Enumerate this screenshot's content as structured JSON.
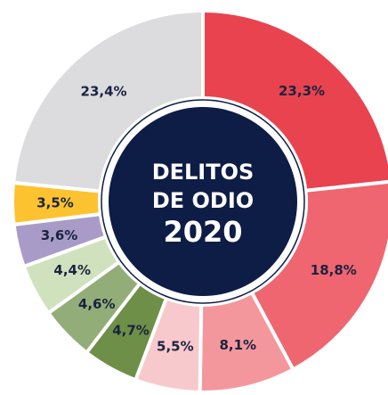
{
  "chart_data": {
    "type": "donut",
    "center_text": [
      "DELITOS",
      "DE ODIO",
      "2020"
    ],
    "categories": [
      null,
      null,
      null,
      null,
      null,
      null,
      null,
      null,
      null,
      null
    ],
    "values": [
      23.3,
      18.8,
      8.1,
      5.5,
      4.7,
      4.6,
      4.4,
      3.6,
      3.5,
      23.4
    ],
    "value_labels": [
      "23,3%",
      "18,8%",
      "8,1%",
      "5,5%",
      "4,7%",
      "4,6%",
      "4,4%",
      "3,6%",
      "3,5%",
      "23,4%"
    ],
    "colors": [
      "#e8434f",
      "#ef6570",
      "#f4979d",
      "#f8c9cc",
      "#6e8f47",
      "#93ad78",
      "#cfe2bd",
      "#a99bc8",
      "#fdc22f",
      "#dcdcdf"
    ],
    "start_angle": 0,
    "direction": "clockwise",
    "center_color": "#0e1d45"
  }
}
